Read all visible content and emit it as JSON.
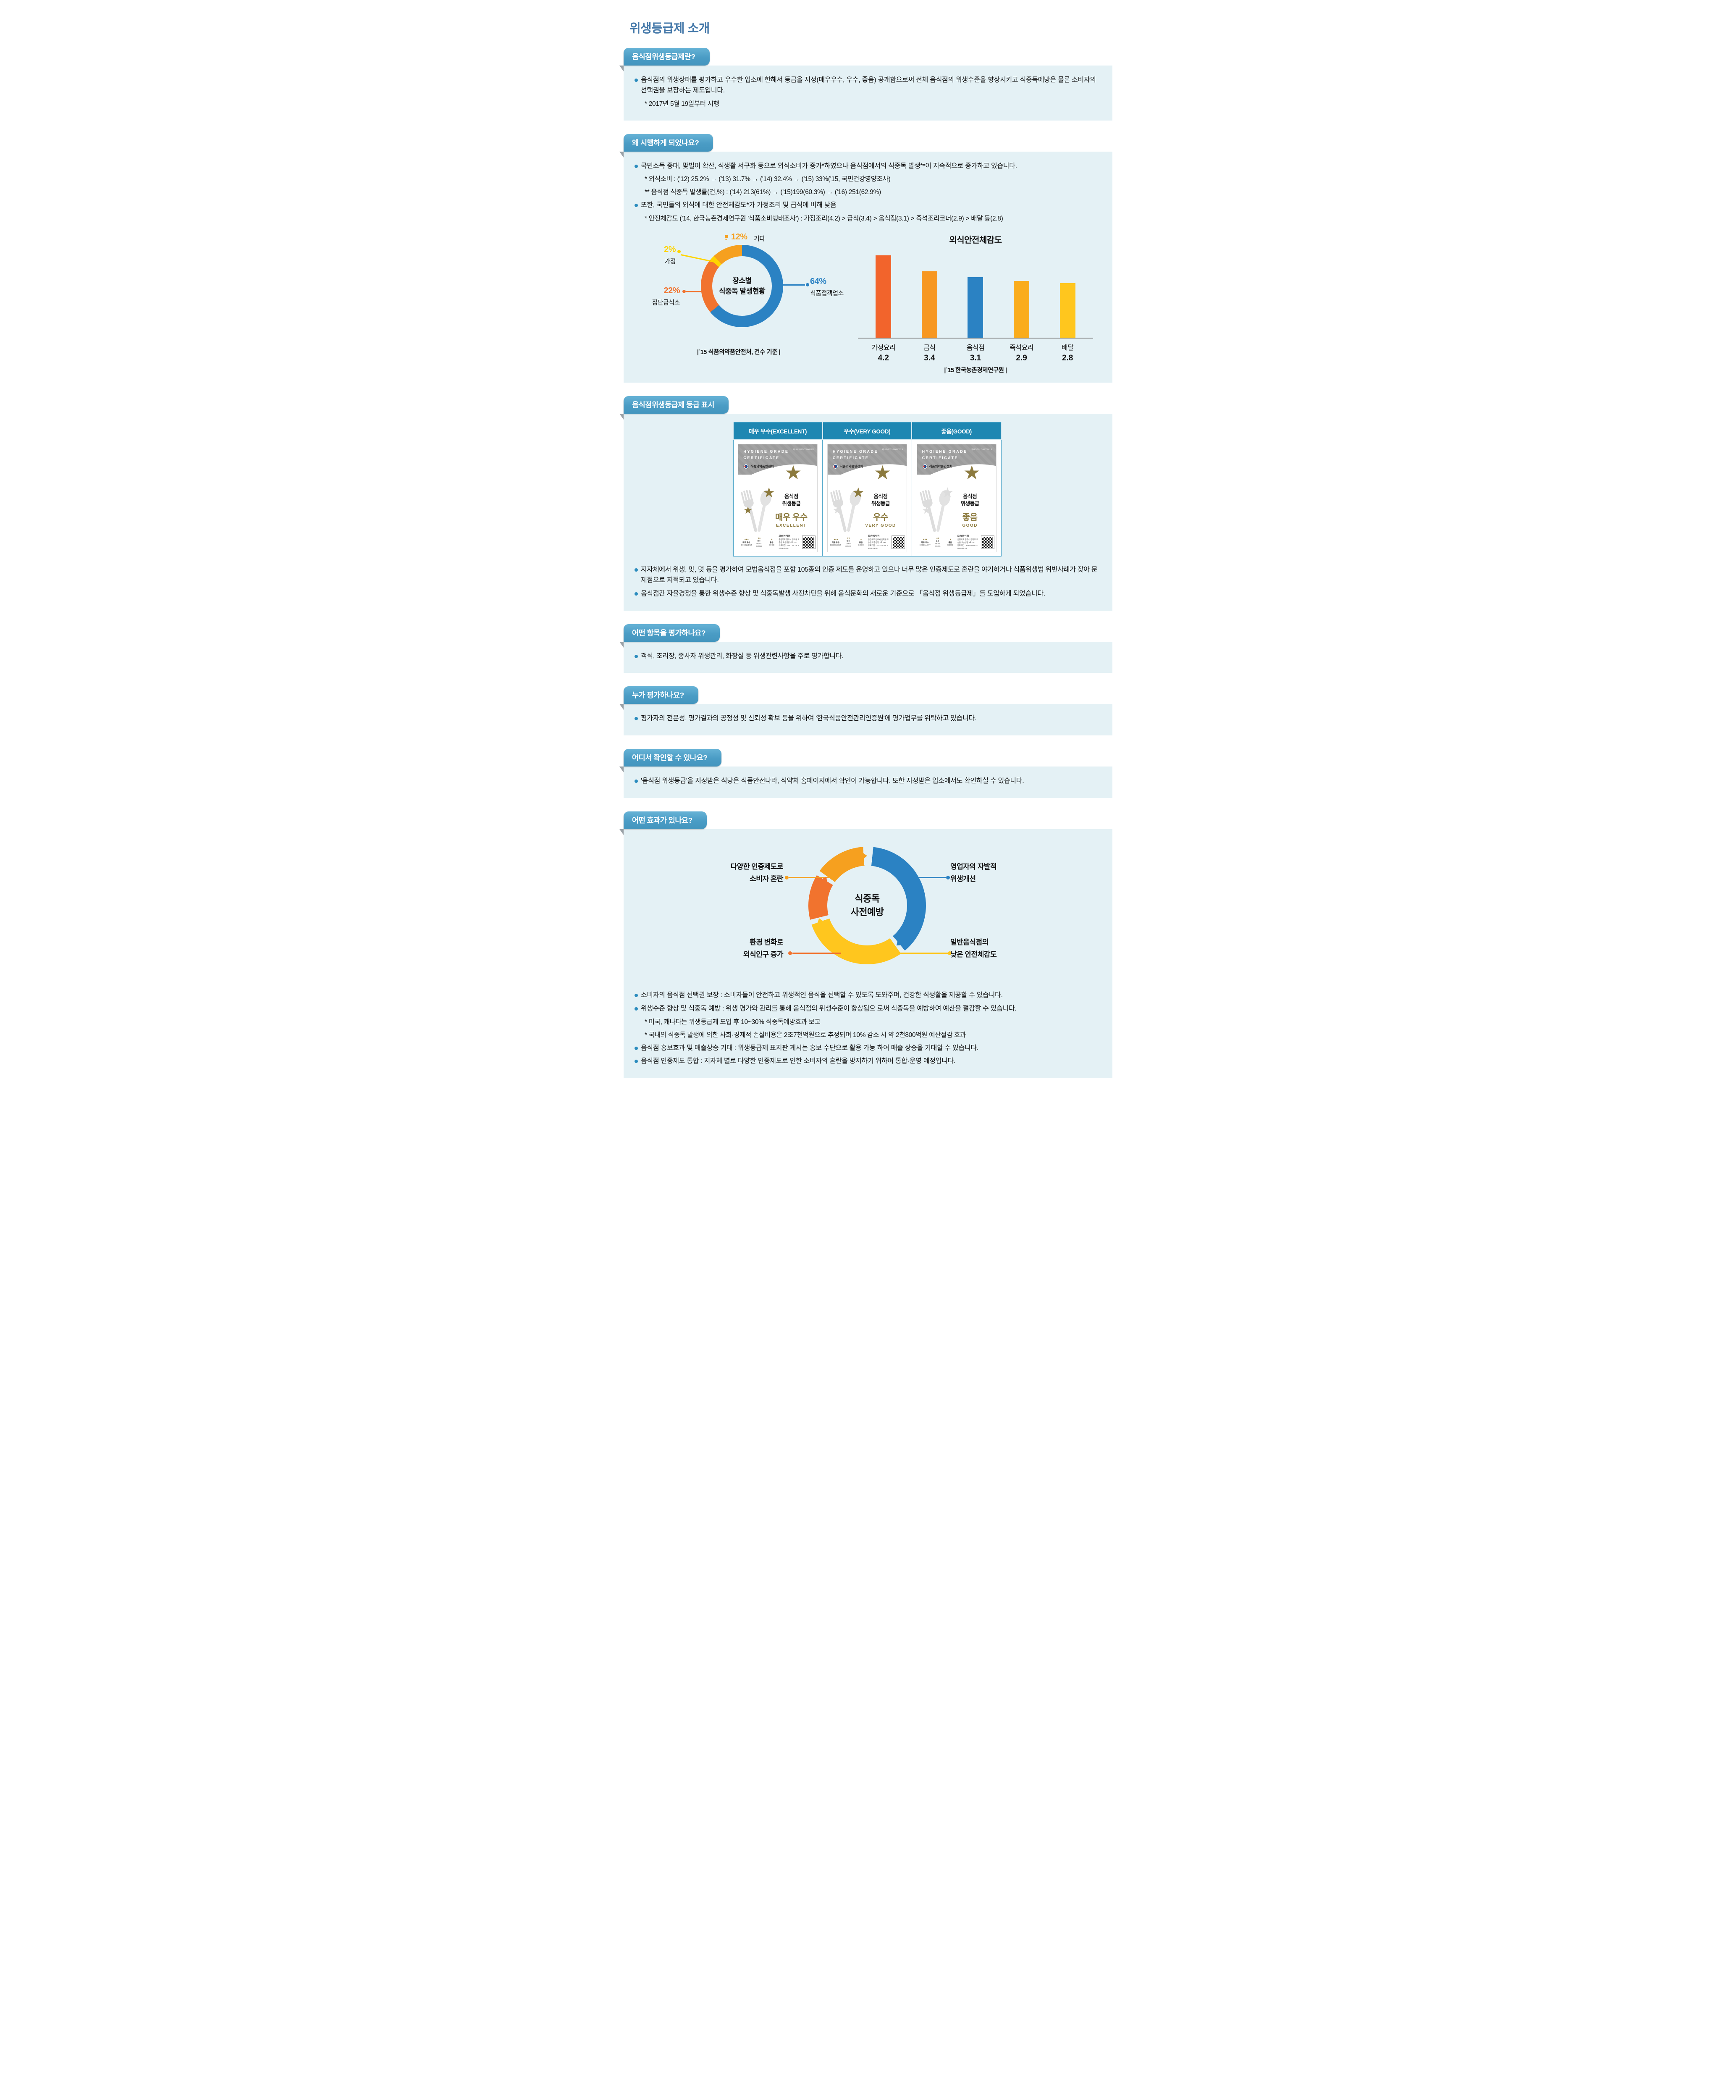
{
  "title": "위생등급제 소개",
  "sections": [
    {
      "id": "what",
      "tab": "음식점위생등급제란?",
      "lines": [
        {
          "type": "bullet",
          "text": "음식점의 위생상태를 평가하고 우수한 업소에 한해서 등급을 지정(매우우수, 우수, 좋음) 공개함으로써 전체 음식점의 위생수준을 향상시키고 식중독예방은 물론 소비자의 선택권을 보장하는 제도입니다."
        },
        {
          "type": "note",
          "text": "* 2017년 5월 19일부터 시행"
        }
      ]
    },
    {
      "id": "why",
      "tab": "왜 시행하게 되었나요?",
      "lines": [
        {
          "type": "bullet",
          "text": "국민소득 증대, 맞벌이 확산, 식생활 서구화 등으로 외식소비가 증가*하였으나 음식점에서의 식중독 발생**이 지속적으로 증가하고 있습니다."
        },
        {
          "type": "note",
          "text": "* 외식소비 : ('12) 25.2% → ('13) 31.7% → ('14) 32.4% → ('15) 33%('15, 국민건강영양조사)"
        },
        {
          "type": "note",
          "text": "** 음식점 식중독 발생률(건,%) : ('14) 213(61%) → ('15)199(60.3%) → ('16) 251(62.9%)"
        },
        {
          "type": "bullet",
          "text": "또한, 국민들의 외식에 대한 안전체감도*가 가정조리 및 급식에 비해 낮음"
        },
        {
          "type": "note",
          "text": "* 안전체감도 ('14, 한국농촌경제연구원 '식품소비행태조사') : 가정조리(4.2) > 급식(3.4) > 음식점(3.1) > 즉석조리코너(2.9) > 배달 등(2.8)"
        }
      ]
    },
    {
      "id": "grades",
      "tab": "음식점위생등급제 등급 표시",
      "table_headers": [
        "매우 우수(EXCELLENT)",
        "우수(VERY GOOD)",
        "좋음(GOOD)"
      ],
      "certificates": [
        {
          "stars": 3,
          "grade_kr": "매우 우수",
          "grade_en": "EXCELLENT"
        },
        {
          "stars": 2,
          "grade_kr": "우수",
          "grade_en": "VERY GOOD"
        },
        {
          "stars": 1,
          "grade_kr": "좋음",
          "grade_en": "GOOD"
        }
      ],
      "cert_common": {
        "header_line1": "HYGIENE GRADE",
        "header_line2": "CERTIFICATE",
        "cert_no": "제HG-2017-0000001호",
        "agency": "식품의약품안전처",
        "label_line1": "음식점",
        "label_line2": "위생등급",
        "mini_grades": [
          {
            "kr": "매우 우수",
            "en": "EXCELLENT",
            "stars": 3
          },
          {
            "kr": "우수",
            "en": "VERY GOOD",
            "stars": 2
          },
          {
            "kr": "좋음",
            "en": "GOOD",
            "stars": 1
          }
        ],
        "shop_name": "오송음식점",
        "shop_addr": "충청북도 청주시 흥덕구 오송읍 오송생명 2로 187",
        "validity": "유효기간 : 2017.05.19. ~ 2019.05.18.",
        "gold_color": "#8C7A3E",
        "ghost_color": "#DCDCDC"
      },
      "lines": [
        {
          "type": "bullet",
          "text": "지자체에서 위생, 맛, 멋 등을 평가하여 모범음식점을 포함 105종의 인증 제도를 운영하고 있으나 너무 많은 인증제도로 혼란을 야기하거나 식품위생법 위반사례가 잦아 문제점으로 지적되고 있습니다."
        },
        {
          "type": "bullet",
          "text": "음식점간 자율경쟁을 통한 위생수준 향상 및 식중독발생 사전차단을 위해 음식문화의 새로운 기준으로 「음식점 위생등급제」를 도입하게 되었습니다."
        }
      ]
    },
    {
      "id": "items",
      "tab": "어떤 항목을 평가하나요?",
      "lines": [
        {
          "type": "bullet",
          "text": "객석, 조리장, 종사자 위생관리, 화장실 등 위생관련사항을 주로 평가합니다."
        }
      ]
    },
    {
      "id": "who",
      "tab": "누가 평가하나요?",
      "lines": [
        {
          "type": "bullet",
          "text": "평가자의 전문성, 평가결과의 공정성 및 신뢰성 확보 등을 위하여 '한국식품안전관리인증원'에 평가업무를 위탁하고 있습니다."
        }
      ]
    },
    {
      "id": "where",
      "tab": "어디서 확인할 수 있나요?",
      "lines": [
        {
          "type": "bullet",
          "text": "'음식점 위생등급'을 지정받은 식당은 식품안전나라, 식약처 홈페이지에서 확인이 가능합니다. 또한 지정받은 업소에서도 확인하실 수 있습니다."
        }
      ]
    },
    {
      "id": "effects",
      "tab": "어떤 효과가 있나요?",
      "cycle": {
        "center": [
          "식중독",
          "사전예방"
        ],
        "ring_colors": {
          "blue": "#2B82C3",
          "yellow": "#FFC61E",
          "orange": "#F1732E",
          "amber": "#F6A01F"
        },
        "labels": [
          {
            "pos": "tl",
            "lines": [
              "다양한 인증제도로",
              "소비자 혼란"
            ],
            "color": "#F6A01F"
          },
          {
            "pos": "tr",
            "lines": [
              "영업자의 자발적",
              "위생개선"
            ],
            "color": "#2B82C3"
          },
          {
            "pos": "bl",
            "lines": [
              "환경 변화로",
              "외식인구 증가"
            ],
            "color": "#F1732E"
          },
          {
            "pos": "br",
            "lines": [
              "일반음식점의",
              "낮은 안전체감도"
            ],
            "color": "#FFC61E"
          }
        ]
      },
      "lines": [
        {
          "type": "bullet",
          "text": "소비자의 음식점 선택권 보장 : 소비자들이 안전하고 위생적인 음식을 선택할 수 있도록 도와주며, 건강한 식생활을 제공할 수 있습니다."
        },
        {
          "type": "bullet",
          "text": "위생수준 향상 및 식중독 예방 : 위생 평가와 관리를 통해 음식점의 위생수준이 향상됨으 로써 식중독을 예방하여 예산을 절감할 수 있습니다."
        },
        {
          "type": "note",
          "text": "* 미국, 캐나다는 위생등급제 도입 후 10~30% 식중독예방효과 보고"
        },
        {
          "type": "note",
          "text": "* 국내의 식중독 발생에 의한 사회·경제적 손실비용은 2조7천억원으로 추정되며 10% 감소 시 약 2천800억원 예산절감 효과"
        },
        {
          "type": "bullet",
          "text": "음식점 홍보효과 및 매출상승 기대 : 위생등급제 표지판 게시는 홍보 수단으로 활용 가능 하여 매출 상승을 기대할 수 있습니다."
        },
        {
          "type": "bullet",
          "text": "음식점 인증제도 통합 : 지자체 별로 다양한 인증제도로 인한 소비자의 혼란을 방지하기 위하여 통합·운영 예정입니다."
        }
      ]
    }
  ],
  "chart_data": [
    {
      "type": "pie",
      "subtype": "donut",
      "title": "장소별 식중독 발생현황",
      "center_label": [
        "장소별",
        "식중독 발생현황"
      ],
      "labels": [
        "식품접객업소",
        "집단급식소",
        "가정",
        "기타"
      ],
      "values": [
        64,
        22,
        2,
        12
      ],
      "unit": "%",
      "colors": [
        "#2B82C3",
        "#F1732E",
        "#FFD400",
        "#F6A01F"
      ],
      "source_caption": "|`15 식품의약품안전처, 건수 기준 |",
      "legend_position": "callouts"
    },
    {
      "type": "bar",
      "title": "외식안전체감도",
      "categories": [
        "가정요리",
        "급식",
        "음식점",
        "즉석요리",
        "배달"
      ],
      "values": [
        4.2,
        3.4,
        3.1,
        2.9,
        2.8
      ],
      "colors": [
        "#F2642C",
        "#F79721",
        "#2B82C3",
        "#FAAC1C",
        "#FFC61E"
      ],
      "xlabel": "",
      "ylabel": "",
      "ylim": [
        0,
        4.4
      ],
      "grid": false,
      "source_caption": "|`15 한국농촌경제연구원 |",
      "value_labels": true
    }
  ]
}
